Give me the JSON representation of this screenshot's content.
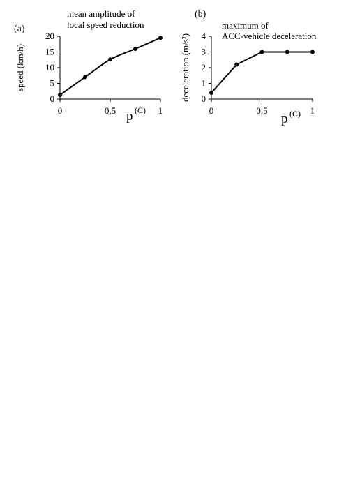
{
  "chart_data": [
    {
      "type": "line",
      "panel_label": "(a)",
      "title_lines": [
        "mean amplitude of",
        "local speed reduction"
      ],
      "ylabel": "speed (km/h)",
      "xlabel": "p",
      "xlabel_super": "(C)",
      "xlim": [
        0,
        1
      ],
      "ylim": [
        0,
        20
      ],
      "x_ticks": [
        0,
        0.5,
        1
      ],
      "x_tick_labels": [
        "0",
        "0,5",
        "1"
      ],
      "y_ticks": [
        0,
        5,
        10,
        15,
        20
      ],
      "y_tick_labels": [
        "0",
        "5",
        "10",
        "15",
        "20"
      ],
      "grid": false,
      "x": [
        0,
        0.25,
        0.5,
        0.75,
        1
      ],
      "series": [
        {
          "values": [
            1.3,
            7,
            12.6,
            16,
            19.5
          ]
        }
      ],
      "smooth": true,
      "line_color": "#000000"
    },
    {
      "type": "line",
      "panel_label": "(b)",
      "title_lines": [
        "maximum of",
        "ACC-vehicle deceleration"
      ],
      "ylabel": "deceleration (m/s²)",
      "xlabel": "p",
      "xlabel_super": "(C)",
      "xlim": [
        0,
        1
      ],
      "ylim": [
        0,
        4
      ],
      "x_ticks": [
        0,
        0.5,
        1
      ],
      "x_tick_labels": [
        "0",
        "0,5",
        "1"
      ],
      "y_ticks": [
        0,
        1,
        2,
        3,
        4
      ],
      "y_tick_labels": [
        "0",
        "1",
        "2",
        "3",
        "4"
      ],
      "grid": false,
      "x": [
        0,
        0.25,
        0.5,
        0.75,
        1
      ],
      "series": [
        {
          "values": [
            0.4,
            2.2,
            3.0,
            3.0,
            3.0
          ]
        }
      ],
      "smooth": false,
      "line_color": "#000000"
    }
  ]
}
